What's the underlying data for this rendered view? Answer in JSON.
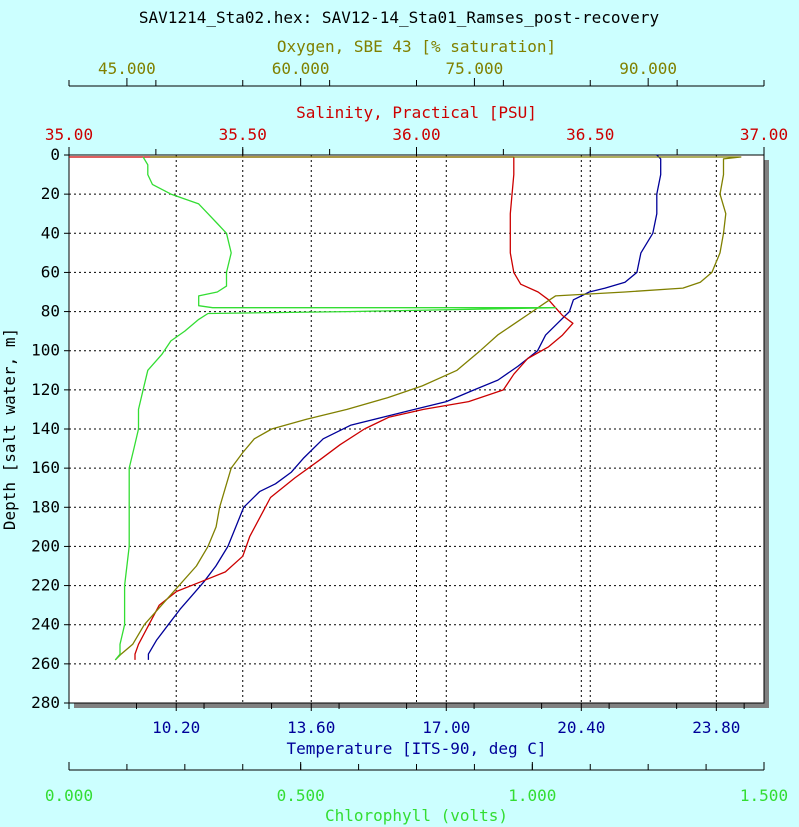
{
  "title": "SAV1214_Sta02.hex:  SAV12-14_Sta01_Ramses_post-recovery",
  "colors": {
    "background": "#ccffff",
    "plot_bg": "#ffffff",
    "shadow": "#808080",
    "oxygen": "#808000",
    "salinity": "#cc0000",
    "temperature": "#000099",
    "chlorophyll": "#33dd33",
    "text": "#000000"
  },
  "chart_data": {
    "type": "line",
    "y_axis": {
      "label": "Depth [salt water, m]",
      "range": [
        0,
        280
      ],
      "inverted": true,
      "ticks": [
        "0",
        "20",
        "40",
        "60",
        "80",
        "100",
        "120",
        "140",
        "160",
        "180",
        "200",
        "220",
        "240",
        "260",
        "280"
      ]
    },
    "axes": {
      "oxygen": {
        "label": "Oxygen, SBE 43 [% saturation]",
        "position": "top-outer",
        "range": [
          40.0,
          100.0
        ],
        "ticks": [
          "45.000",
          "60.000",
          "75.000",
          "90.000"
        ],
        "tick_values": [
          45,
          60,
          75,
          90
        ]
      },
      "salinity": {
        "label": "Salinity, Practical [PSU]",
        "position": "top-inner",
        "range": [
          35.0,
          37.0
        ],
        "ticks": [
          "35.00",
          "35.50",
          "36.00",
          "36.50",
          "37.00"
        ],
        "tick_values": [
          35.0,
          35.5,
          36.0,
          36.5,
          37.0
        ]
      },
      "temperature": {
        "label": "Temperature [ITS-90, deg C]",
        "position": "bottom-inner",
        "range": [
          7.5,
          25.0
        ],
        "ticks": [
          "10.20",
          "13.60",
          "17.00",
          "20.40",
          "23.80"
        ],
        "tick_values": [
          10.2,
          13.6,
          17.0,
          20.4,
          23.8
        ]
      },
      "chlorophyll": {
        "label": "Chlorophyll (volts)",
        "position": "bottom-outer",
        "range": [
          0.0,
          1.5
        ],
        "ticks": [
          "0.000",
          "0.500",
          "1.000",
          "1.500"
        ],
        "tick_values": [
          0.0,
          0.5,
          1.0,
          1.5
        ]
      }
    },
    "grid": true,
    "series": [
      {
        "name": "Temperature [ITS-90, deg C]",
        "axis": "temperature",
        "points": [
          [
            22.3,
            0
          ],
          [
            22.4,
            2
          ],
          [
            22.4,
            10
          ],
          [
            22.3,
            20
          ],
          [
            22.3,
            30
          ],
          [
            22.2,
            40
          ],
          [
            21.9,
            50
          ],
          [
            21.8,
            60
          ],
          [
            21.5,
            65
          ],
          [
            21.0,
            68
          ],
          [
            20.6,
            70
          ],
          [
            20.2,
            74
          ],
          [
            20.1,
            80
          ],
          [
            19.8,
            86
          ],
          [
            19.5,
            92
          ],
          [
            19.3,
            100
          ],
          [
            18.8,
            108
          ],
          [
            18.3,
            115
          ],
          [
            17.7,
            120
          ],
          [
            17.0,
            126
          ],
          [
            16.2,
            130
          ],
          [
            15.4,
            134
          ],
          [
            14.6,
            138
          ],
          [
            13.9,
            145
          ],
          [
            13.4,
            155
          ],
          [
            13.1,
            162
          ],
          [
            12.7,
            168
          ],
          [
            12.3,
            172
          ],
          [
            11.9,
            180
          ],
          [
            11.7,
            190
          ],
          [
            11.5,
            200
          ],
          [
            11.2,
            210
          ],
          [
            10.9,
            218
          ],
          [
            10.6,
            225
          ],
          [
            10.3,
            232
          ],
          [
            10.0,
            240
          ],
          [
            9.7,
            248
          ],
          [
            9.5,
            255
          ],
          [
            9.5,
            258
          ]
        ]
      },
      {
        "name": "Salinity, Practical [PSU]",
        "axis": "salinity",
        "points": [
          [
            35.0,
            1
          ],
          [
            35.3,
            1
          ],
          [
            35.5,
            1
          ],
          [
            35.9,
            1
          ],
          [
            36.1,
            1
          ],
          [
            36.28,
            1
          ],
          [
            36.28,
            10
          ],
          [
            36.27,
            30
          ],
          [
            36.27,
            50
          ],
          [
            36.28,
            60
          ],
          [
            36.3,
            66
          ],
          [
            36.35,
            70
          ],
          [
            36.38,
            74
          ],
          [
            36.4,
            78
          ],
          [
            36.42,
            82
          ],
          [
            36.45,
            86
          ],
          [
            36.42,
            92
          ],
          [
            36.38,
            98
          ],
          [
            36.32,
            104
          ],
          [
            36.28,
            112
          ],
          [
            36.25,
            120
          ],
          [
            36.15,
            126
          ],
          [
            36.02,
            130
          ],
          [
            35.92,
            134
          ],
          [
            35.85,
            140
          ],
          [
            35.78,
            148
          ],
          [
            35.72,
            156
          ],
          [
            35.65,
            165
          ],
          [
            35.58,
            175
          ],
          [
            35.55,
            185
          ],
          [
            35.52,
            195
          ],
          [
            35.5,
            205
          ],
          [
            35.45,
            213
          ],
          [
            35.38,
            218
          ],
          [
            35.31,
            223
          ],
          [
            35.26,
            230
          ],
          [
            35.23,
            240
          ],
          [
            35.2,
            250
          ],
          [
            35.19,
            255
          ],
          [
            35.19,
            258
          ]
        ]
      },
      {
        "name": "Oxygen, SBE 43 [% saturation]",
        "axis": "oxygen",
        "points": [
          [
            47.0,
            1
          ],
          [
            60.0,
            1
          ],
          [
            98.0,
            1
          ],
          [
            96.5,
            2
          ],
          [
            96.5,
            10
          ],
          [
            96.2,
            20
          ],
          [
            96.7,
            30
          ],
          [
            96.5,
            40
          ],
          [
            96.2,
            50
          ],
          [
            95.5,
            60
          ],
          [
            94.5,
            65
          ],
          [
            93.0,
            68
          ],
          [
            88.0,
            70
          ],
          [
            82.0,
            72
          ],
          [
            81.0,
            76
          ],
          [
            80.0,
            80
          ],
          [
            78.5,
            86
          ],
          [
            77.0,
            92
          ],
          [
            75.5,
            100
          ],
          [
            73.5,
            110
          ],
          [
            70.5,
            118
          ],
          [
            67.5,
            124
          ],
          [
            64.0,
            130
          ],
          [
            60.5,
            135
          ],
          [
            57.5,
            140
          ],
          [
            56.0,
            145
          ],
          [
            55.0,
            152
          ],
          [
            54.0,
            160
          ],
          [
            53.5,
            170
          ],
          [
            53.0,
            180
          ],
          [
            52.7,
            190
          ],
          [
            52.0,
            200
          ],
          [
            51.0,
            210
          ],
          [
            49.5,
            220
          ],
          [
            48.0,
            230
          ],
          [
            46.5,
            240
          ],
          [
            45.5,
            250
          ],
          [
            44.5,
            255
          ],
          [
            44.0,
            258
          ]
        ]
      },
      {
        "name": "Chlorophyll (volts)",
        "axis": "chlorophyll",
        "points": [
          [
            0.16,
            1
          ],
          [
            0.17,
            5
          ],
          [
            0.17,
            10
          ],
          [
            0.18,
            15
          ],
          [
            0.22,
            20
          ],
          [
            0.28,
            25
          ],
          [
            0.3,
            30
          ],
          [
            0.32,
            35
          ],
          [
            0.34,
            40
          ],
          [
            0.35,
            50
          ],
          [
            0.34,
            60
          ],
          [
            0.34,
            67
          ],
          [
            0.32,
            70
          ],
          [
            0.28,
            72
          ],
          [
            0.28,
            77
          ],
          [
            0.31,
            78
          ],
          [
            1.05,
            78
          ],
          [
            0.6,
            80
          ],
          [
            0.3,
            81
          ],
          [
            0.28,
            84
          ],
          [
            0.25,
            90
          ],
          [
            0.22,
            95
          ],
          [
            0.2,
            102
          ],
          [
            0.17,
            110
          ],
          [
            0.16,
            120
          ],
          [
            0.15,
            130
          ],
          [
            0.15,
            140
          ],
          [
            0.14,
            150
          ],
          [
            0.13,
            160
          ],
          [
            0.13,
            180
          ],
          [
            0.13,
            200
          ],
          [
            0.12,
            220
          ],
          [
            0.12,
            240
          ],
          [
            0.11,
            250
          ],
          [
            0.11,
            255
          ],
          [
            0.1,
            258
          ]
        ]
      }
    ]
  }
}
